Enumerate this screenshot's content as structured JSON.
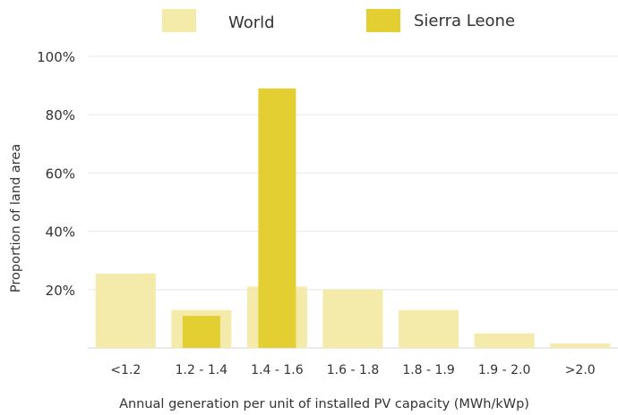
{
  "chart_data": {
    "type": "bar",
    "title": "",
    "xlabel": "Annual generation per unit of installed PV capacity (MWh/kWp)",
    "ylabel": "Proportion of land area",
    "ylim": [
      0,
      100
    ],
    "yticks": [
      "20%",
      "40%",
      "60%",
      "80%",
      "100%"
    ],
    "categories": [
      "<1.2",
      "1.2 - 1.4",
      "1.4 - 1.6",
      "1.6 - 1.8",
      "1.8 - 1.9",
      "1.9 - 2.0",
      ">2.0"
    ],
    "series": [
      {
        "name": "World",
        "color": "#f4eaaa",
        "values": [
          25.5,
          13,
          21,
          20,
          13,
          5,
          1.5
        ]
      },
      {
        "name": "Sierra Leone",
        "color": "#e4cf33",
        "values": [
          0,
          11,
          89,
          0,
          0,
          0,
          0
        ]
      }
    ],
    "grid": true,
    "legend_position": "top"
  }
}
